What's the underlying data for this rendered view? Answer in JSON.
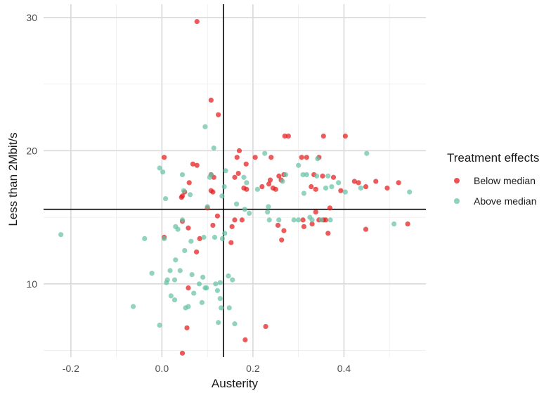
{
  "chart_data": {
    "type": "scatter",
    "title": "",
    "xlabel": "Austerity",
    "ylabel": "Less than 2Mbit/s",
    "xlim": [
      -0.26,
      0.58
    ],
    "ylim": [
      4.5,
      31
    ],
    "x_ticks": [
      -0.2,
      0.0,
      0.2,
      0.4
    ],
    "x_tick_labels": [
      "-0.2",
      "0.0",
      "0.2",
      "0.4"
    ],
    "y_ticks": [
      10,
      20,
      30
    ],
    "y_tick_labels": [
      "10",
      "20",
      "30"
    ],
    "vline": 0.135,
    "hline": 15.6,
    "grid": true,
    "legend": {
      "title": "Treatment effects",
      "position": "right",
      "items": [
        {
          "label": "Below median",
          "color": "#e41a1c"
        },
        {
          "label": "Above median",
          "color": "#66c2a5"
        }
      ]
    },
    "series": [
      {
        "name": "Below median",
        "color": "#e41a1c",
        "points": [
          [
            0.077,
            29.7
          ],
          [
            0.108,
            23.8
          ],
          [
            0.124,
            22.7
          ],
          [
            0.005,
            19.5
          ],
          [
            0.068,
            19.0
          ],
          [
            0.077,
            18.9
          ],
          [
            0.17,
            20.0
          ],
          [
            0.165,
            19.5
          ],
          [
            0.185,
            19.0
          ],
          [
            0.205,
            19.5
          ],
          [
            0.24,
            19.5
          ],
          [
            0.27,
            21.1
          ],
          [
            0.278,
            21.1
          ],
          [
            0.355,
            21.1
          ],
          [
            0.403,
            21.1
          ],
          [
            0.307,
            19.5
          ],
          [
            0.318,
            19.5
          ],
          [
            0.345,
            19.5
          ],
          [
            0.108,
            18.2
          ],
          [
            0.114,
            18.0
          ],
          [
            0.168,
            18.3
          ],
          [
            0.16,
            18.0
          ],
          [
            0.22,
            17.3
          ],
          [
            0.235,
            17.5
          ],
          [
            0.238,
            17.8
          ],
          [
            0.244,
            17.2
          ],
          [
            0.25,
            17.1
          ],
          [
            0.257,
            18.1
          ],
          [
            0.262,
            17.8
          ],
          [
            0.268,
            18.2
          ],
          [
            0.328,
            17.3
          ],
          [
            0.334,
            18.2
          ],
          [
            0.338,
            17.1
          ],
          [
            0.353,
            18.1
          ],
          [
            0.377,
            18.0
          ],
          [
            0.393,
            17.0
          ],
          [
            0.423,
            17.7
          ],
          [
            0.432,
            17.6
          ],
          [
            0.448,
            17.3
          ],
          [
            0.47,
            17.7
          ],
          [
            0.495,
            17.2
          ],
          [
            0.52,
            17.6
          ],
          [
            0.06,
            17.6
          ],
          [
            0.043,
            16.5
          ],
          [
            0.045,
            16.6
          ],
          [
            0.05,
            16.9
          ],
          [
            0.108,
            17.0
          ],
          [
            0.112,
            16.9
          ],
          [
            0.1,
            15.7
          ],
          [
            0.122,
            15.1
          ],
          [
            0.16,
            14.8
          ],
          [
            0.176,
            14.8
          ],
          [
            0.18,
            17.2
          ],
          [
            0.186,
            17.1
          ],
          [
            0.045,
            14.7
          ],
          [
            0.058,
            14.2
          ],
          [
            0.112,
            14.4
          ],
          [
            0.154,
            14.3
          ],
          [
            0.152,
            13.1
          ],
          [
            0.005,
            13.5
          ],
          [
            0.083,
            13.4
          ],
          [
            0.076,
            12.4
          ],
          [
            0.255,
            14.4
          ],
          [
            0.268,
            14.0
          ],
          [
            0.263,
            13.3
          ],
          [
            0.31,
            14.8
          ],
          [
            0.312,
            14.3
          ],
          [
            0.33,
            14.5
          ],
          [
            0.338,
            15.4
          ],
          [
            0.345,
            14.8
          ],
          [
            0.355,
            14.8
          ],
          [
            0.36,
            14.8
          ],
          [
            0.365,
            13.8
          ],
          [
            0.369,
            15.7
          ],
          [
            0.448,
            14.1
          ],
          [
            0.54,
            14.5
          ],
          [
            0.058,
            9.7
          ],
          [
            0.055,
            6.7
          ],
          [
            0.045,
            4.8
          ],
          [
            0.228,
            6.8
          ],
          [
            0.183,
            5.8
          ]
        ]
      },
      {
        "name": "Above median",
        "color": "#66c2a5",
        "points": [
          [
            -0.222,
            13.7
          ],
          [
            -0.063,
            8.3
          ],
          [
            -0.038,
            13.4
          ],
          [
            -0.022,
            10.8
          ],
          [
            -0.005,
            18.7
          ],
          [
            -0.005,
            6.9
          ],
          [
            0.002,
            18.4
          ],
          [
            0.005,
            13.4
          ],
          [
            0.008,
            16.4
          ],
          [
            0.01,
            10.1
          ],
          [
            0.012,
            10.3
          ],
          [
            0.018,
            11.0
          ],
          [
            0.02,
            9.1
          ],
          [
            0.028,
            8.8
          ],
          [
            0.028,
            10.3
          ],
          [
            0.03,
            14.3
          ],
          [
            0.03,
            11.8
          ],
          [
            0.035,
            14.1
          ],
          [
            0.04,
            11.0
          ],
          [
            0.045,
            18.2
          ],
          [
            0.045,
            14.8
          ],
          [
            0.048,
            17.0
          ],
          [
            0.05,
            12.5
          ],
          [
            0.052,
            8.2
          ],
          [
            0.058,
            8.3
          ],
          [
            0.062,
            16.7
          ],
          [
            0.064,
            13.2
          ],
          [
            0.066,
            10.7
          ],
          [
            0.07,
            9.3
          ],
          [
            0.082,
            10.0
          ],
          [
            0.088,
            8.6
          ],
          [
            0.09,
            10.5
          ],
          [
            0.095,
            9.7
          ],
          [
            0.098,
            9.7
          ],
          [
            0.092,
            13.5
          ],
          [
            0.095,
            21.8
          ],
          [
            0.1,
            15.8
          ],
          [
            0.105,
            18.0
          ],
          [
            0.108,
            18.2
          ],
          [
            0.114,
            20.2
          ],
          [
            0.116,
            13.5
          ],
          [
            0.118,
            10.0
          ],
          [
            0.122,
            9.5
          ],
          [
            0.124,
            7.1
          ],
          [
            0.128,
            8.9
          ],
          [
            0.13,
            8.2
          ],
          [
            0.128,
            10.1
          ],
          [
            0.132,
            16.6
          ],
          [
            0.133,
            13.4
          ],
          [
            0.137,
            17.3
          ],
          [
            0.138,
            13.8
          ],
          [
            0.14,
            18.5
          ],
          [
            0.146,
            10.6
          ],
          [
            0.148,
            8.2
          ],
          [
            0.155,
            10.3
          ],
          [
            0.16,
            7.0
          ],
          [
            0.164,
            16.0
          ],
          [
            0.18,
            18.0
          ],
          [
            0.182,
            15.6
          ],
          [
            0.186,
            17.6
          ],
          [
            0.192,
            15.3
          ],
          [
            0.21,
            17.1
          ],
          [
            0.226,
            19.8
          ],
          [
            0.232,
            15.4
          ],
          [
            0.234,
            15.8
          ],
          [
            0.236,
            14.8
          ],
          [
            0.257,
            14.8
          ],
          [
            0.265,
            17.7
          ],
          [
            0.272,
            18.2
          ],
          [
            0.29,
            14.8
          ],
          [
            0.3,
            18.9
          ],
          [
            0.3,
            14.8
          ],
          [
            0.31,
            18.2
          ],
          [
            0.312,
            16.8
          ],
          [
            0.318,
            18.2
          ],
          [
            0.325,
            15.0
          ],
          [
            0.33,
            14.8
          ],
          [
            0.34,
            18.1
          ],
          [
            0.342,
            19.4
          ],
          [
            0.35,
            14.8
          ],
          [
            0.36,
            17.2
          ],
          [
            0.365,
            18.1
          ],
          [
            0.37,
            14.8
          ],
          [
            0.373,
            17.3
          ],
          [
            0.388,
            17.6
          ],
          [
            0.403,
            16.9
          ],
          [
            0.437,
            17.2
          ],
          [
            0.45,
            19.8
          ],
          [
            0.51,
            14.5
          ],
          [
            0.544,
            16.9
          ]
        ]
      }
    ]
  }
}
